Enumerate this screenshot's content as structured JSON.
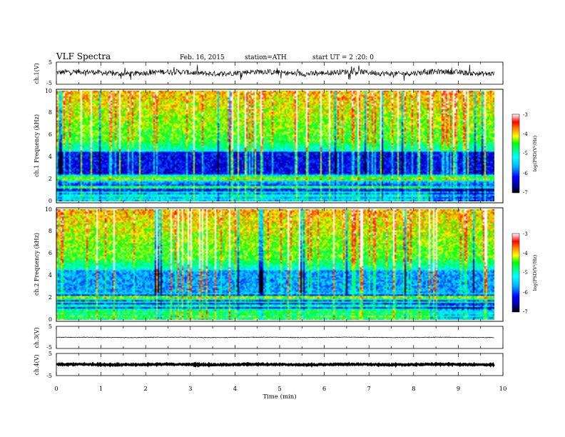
{
  "header": {
    "title": "VLF Spectra",
    "date": "Feb. 16, 2015",
    "station": "station=ATH",
    "start_ut": "start UT = 2 :20: 0"
  },
  "chart_data": [
    {
      "type": "line",
      "name": "ch1-waveform",
      "ylabel": "ch.1(V)",
      "y_ticks": [
        "5",
        "-5"
      ],
      "ylim": [
        -5,
        5
      ],
      "xlim": [
        0,
        9.8
      ],
      "baseline": 0.2,
      "noise_amplitude": 1.2
    },
    {
      "type": "heatmap",
      "name": "ch1-spectrogram",
      "ylabel": "ch.1 Frequency (kHz)",
      "y_ticks": [
        "0",
        "2",
        "4",
        "6",
        "8",
        "10"
      ],
      "ylim": [
        0,
        10
      ],
      "xlim": [
        0,
        9.8
      ],
      "colorbar": {
        "label": "log(PSD(V²/Hz)",
        "ticks": [
          "-3",
          "-4",
          "-5",
          "-6",
          "-7"
        ],
        "range": [
          -7,
          -3
        ]
      }
    },
    {
      "type": "heatmap",
      "name": "ch2-spectrogram",
      "ylabel": "ch.2 Frequency (kHz)",
      "y_ticks": [
        "0",
        "2",
        "4",
        "6",
        "8",
        "10"
      ],
      "ylim": [
        0,
        10
      ],
      "xlim": [
        0,
        9.8
      ],
      "colorbar": {
        "label": "log(PSD(V²/Hz)",
        "ticks": [
          "-3",
          "-4",
          "-5",
          "-6",
          "-7"
        ],
        "range": [
          -7,
          -3
        ]
      }
    },
    {
      "type": "line",
      "name": "ch3-waveform",
      "ylabel": "ch.3(V)",
      "y_ticks": [
        "5",
        "-5"
      ],
      "ylim": [
        -5,
        5
      ],
      "xlim": [
        0,
        9.8
      ],
      "baseline": 0,
      "noise_amplitude": 0.15
    },
    {
      "type": "line",
      "name": "ch4-waveform",
      "ylabel": "ch.4(V)",
      "y_ticks": [
        "5",
        "-5"
      ],
      "ylim": [
        -5,
        5
      ],
      "xlim": [
        0,
        9.8
      ],
      "baseline": 0,
      "noise_amplitude": 0.25
    }
  ],
  "x_axis": {
    "label": "Time (min)",
    "ticks": [
      "0",
      "1",
      "2",
      "3",
      "4",
      "5",
      "6",
      "7",
      "8",
      "9",
      "10"
    ],
    "range": [
      0,
      10
    ]
  },
  "colors": {
    "colormap": [
      "#000000",
      "#00008b",
      "#0000ff",
      "#00b0ff",
      "#00ffff",
      "#00ff7f",
      "#00ff00",
      "#a0ff00",
      "#ffff00",
      "#ff8000",
      "#ff0000",
      "#ffffff"
    ]
  }
}
